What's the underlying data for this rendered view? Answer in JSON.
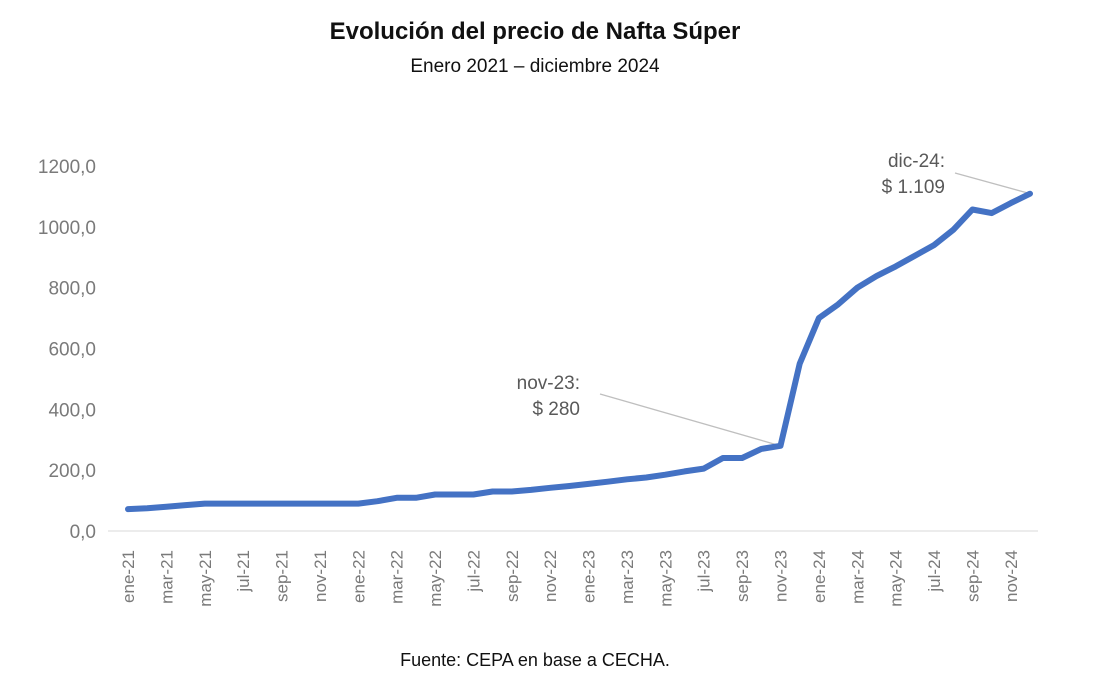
{
  "chart_data": {
    "type": "line",
    "title": "Evolución del precio de Nafta Súper",
    "subtitle": "Enero 2021 – diciembre 2024",
    "source": "Fuente: CEPA en base a CECHA.",
    "xlabel": "",
    "ylabel": "",
    "ylim": [
      0,
      1200
    ],
    "yticks": [
      0,
      200,
      400,
      600,
      800,
      1000,
      1200
    ],
    "ytick_labels": [
      "0,0",
      "200,0",
      "400,0",
      "600,0",
      "800,0",
      "1000,0",
      "1200,0"
    ],
    "grid": false,
    "line_color": "#4472C4",
    "x": [
      "ene-21",
      "feb-21",
      "mar-21",
      "abr-21",
      "may-21",
      "jun-21",
      "jul-21",
      "ago-21",
      "sep-21",
      "oct-21",
      "nov-21",
      "dic-21",
      "ene-22",
      "feb-22",
      "mar-22",
      "abr-22",
      "may-22",
      "jun-22",
      "jul-22",
      "ago-22",
      "sep-22",
      "oct-22",
      "nov-22",
      "dic-22",
      "ene-23",
      "feb-23",
      "mar-23",
      "abr-23",
      "may-23",
      "jun-23",
      "jul-23",
      "ago-23",
      "sep-23",
      "oct-23",
      "nov-23",
      "dic-23",
      "ene-24",
      "feb-24",
      "mar-24",
      "abr-24",
      "may-24",
      "jun-24",
      "jul-24",
      "ago-24",
      "sep-24",
      "oct-24",
      "nov-24",
      "dic-24"
    ],
    "xtick_labels": [
      "ene-21",
      "mar-21",
      "may-21",
      "jul-21",
      "sep-21",
      "nov-21",
      "ene-22",
      "mar-22",
      "may-22",
      "jul-22",
      "sep-22",
      "nov-22",
      "ene-23",
      "mar-23",
      "may-23",
      "jul-23",
      "sep-23",
      "nov-23",
      "ene-24",
      "mar-24",
      "may-24",
      "jul-24",
      "sep-24",
      "nov-24"
    ],
    "series": [
      {
        "name": "Nafta Súper",
        "values": [
          72,
          75,
          80,
          85,
          90,
          90,
          90,
          90,
          90,
          90,
          90,
          90,
          90,
          98,
          109,
          109,
          120,
          120,
          120,
          130,
          130,
          135,
          142,
          148,
          155,
          162,
          170,
          176,
          185,
          196,
          205,
          240,
          240,
          270,
          280,
          550,
          700,
          745,
          800,
          838,
          870,
          905,
          940,
          990,
          1057,
          1045,
          1078,
          1109
        ]
      }
    ],
    "annotations": [
      {
        "index": 34,
        "line1": "nov-23:",
        "line2": "$ 280"
      },
      {
        "index": 47,
        "line1": "dic-24:",
        "line2": "$ 1.109"
      }
    ]
  }
}
